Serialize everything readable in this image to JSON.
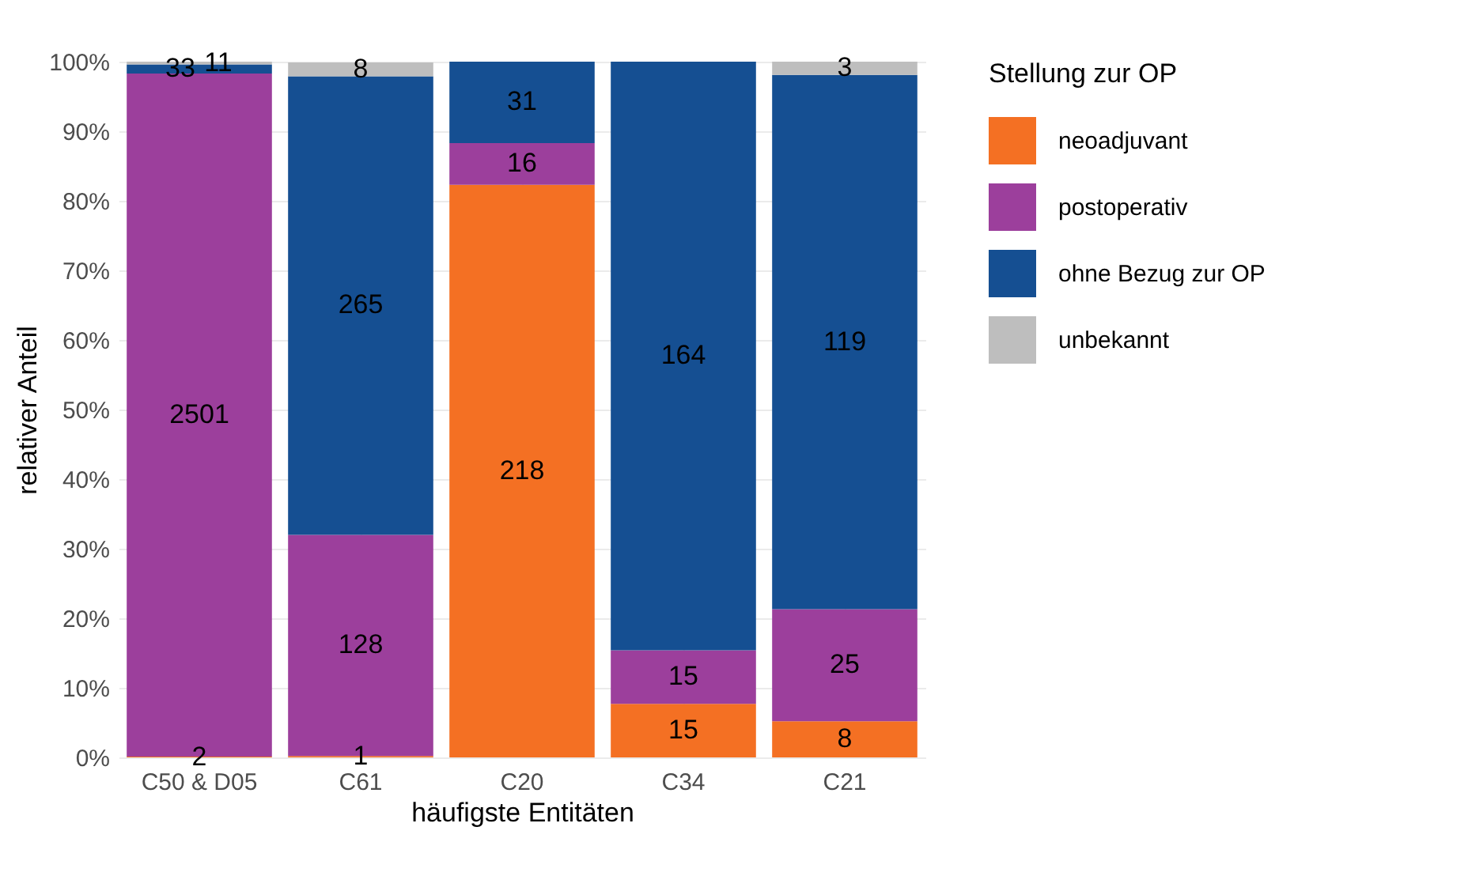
{
  "chart_data": {
    "type": "bar",
    "stacked": true,
    "xlabel": "häufigste Entitäten",
    "ylabel": "relativer Anteil",
    "legend_title": "Stellung zur OP",
    "legend": "right",
    "grid": true,
    "categories": [
      "C50 & D05",
      "C61",
      "C20",
      "C34",
      "C21"
    ],
    "ylim": [
      0,
      100
    ],
    "yticks": [
      {
        "value": 0,
        "label": "0%"
      },
      {
        "value": 10,
        "label": "10%"
      },
      {
        "value": 20,
        "label": "20%"
      },
      {
        "value": 30,
        "label": "30%"
      },
      {
        "value": 40,
        "label": "40%"
      },
      {
        "value": 50,
        "label": "50%"
      },
      {
        "value": 60,
        "label": "60%"
      },
      {
        "value": 70,
        "label": "70%"
      },
      {
        "value": 80,
        "label": "80%"
      },
      {
        "value": 90,
        "label": "90%"
      },
      {
        "value": 100,
        "label": "100%"
      }
    ],
    "series": [
      {
        "name": "neoadjuvant",
        "color": "#f47023",
        "values": [
          0.1,
          0.2,
          82.3,
          7.7,
          5.2
        ]
      },
      {
        "name": "postoperativ",
        "color": "#9c3f9c",
        "values": [
          98.2,
          31.8,
          6.0,
          7.7,
          16.1
        ]
      },
      {
        "name": "ohne Bezug zur OP",
        "color": "#154f92",
        "values": [
          1.3,
          65.9,
          11.7,
          84.6,
          76.8
        ]
      },
      {
        "name": "unbekannt",
        "color": "#bebebe",
        "values": [
          0.4,
          2.0,
          null,
          null,
          1.9
        ]
      }
    ],
    "annotations": [
      "2",
      "2501",
      "33",
      "11",
      "1",
      "128",
      "265",
      "8",
      "218",
      "16",
      "31",
      "15",
      "15",
      "164",
      "8",
      "25",
      "119",
      "3"
    ]
  }
}
